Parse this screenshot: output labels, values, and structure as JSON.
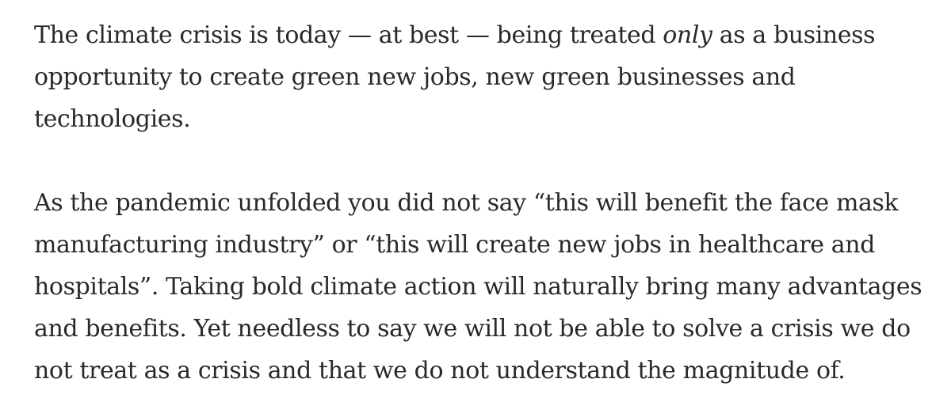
{
  "article": {
    "paragraph_1": {
      "line_1_before": "The climate crisis is today — at best — being treated ",
      "line_1_emphasis": "only",
      "line_1_after": " as a business",
      "line_2": "opportunity to create green new jobs, new green businesses and",
      "line_3": "technologies."
    },
    "paragraph_2": {
      "line_1": "As the pandemic unfolded you did not say “this will benefit the face mask",
      "line_2": "manufacturing industry” or “this will create new jobs in healthcare and",
      "line_3": "hospitals”. Taking bold climate action will naturally bring many advantages",
      "line_4": "and benefits. Yet needless to say we will not be able to solve a crisis we do",
      "line_5": "not treat as a crisis and that we do not understand the magnitude of."
    }
  }
}
